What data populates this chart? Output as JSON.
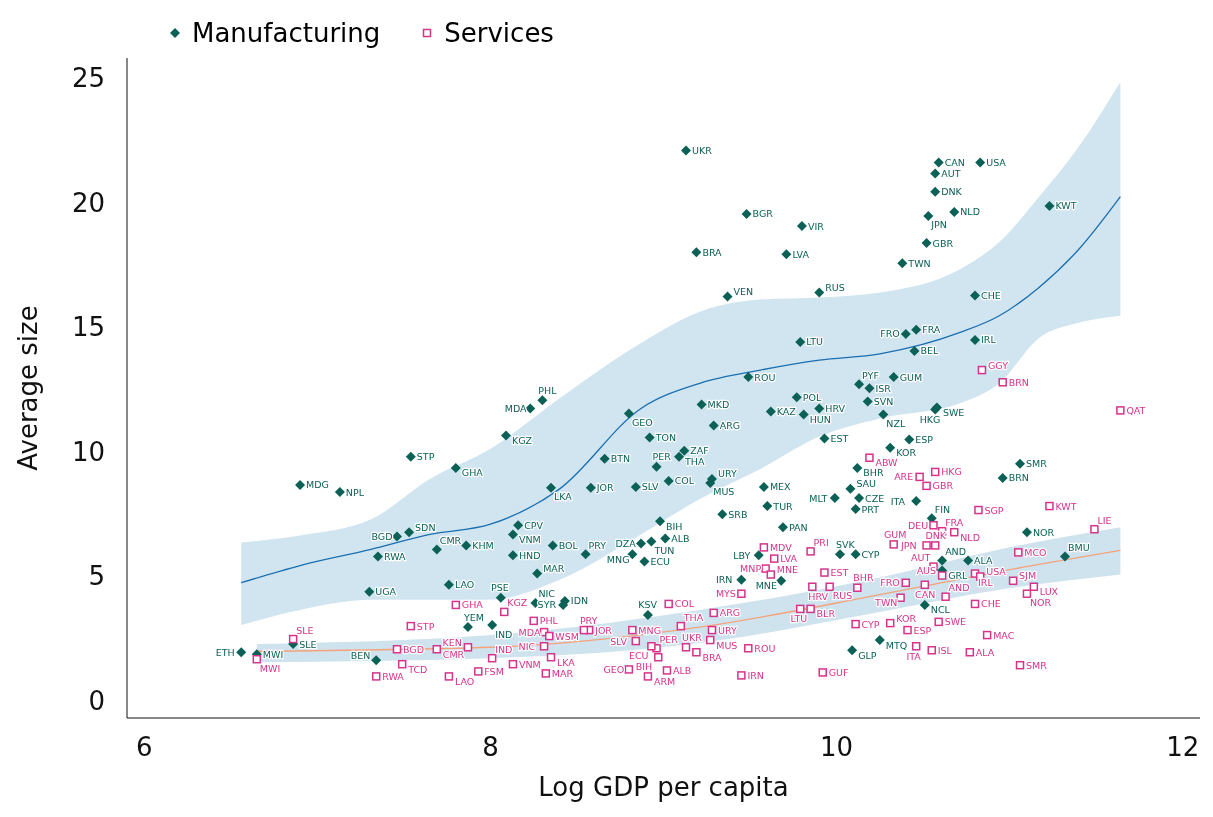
{
  "chart_data": {
    "type": "scatter",
    "xlabel": "Log GDP per capita",
    "ylabel": "Average size",
    "xlim": [
      5.9,
      12.1
    ],
    "ylim": [
      -0.7,
      25.8
    ],
    "xticks": [
      6,
      8,
      10,
      12
    ],
    "yticks": [
      0,
      5,
      10,
      15,
      20,
      25
    ],
    "grid": false,
    "legend": "top left",
    "series": [
      {
        "name": "Manufacturing",
        "marker": "diamond",
        "color": "#0b6156",
        "value_labels": [
          "UKR",
          "CAN",
          "USA",
          "AUT",
          "DNK",
          "JPN",
          "NLD",
          "KWT",
          "BGR",
          "VIR",
          "BRA",
          "LVA",
          "GBR",
          "TWN",
          "VEN",
          "RUS",
          "CHE",
          "FRA",
          "FRO",
          "LTU",
          "IRL",
          "BEL",
          "ROU",
          "GUM",
          "PYF",
          "ISR",
          "POL",
          "SVN",
          "KAZ",
          "HUN",
          "HRV",
          "NZL",
          "SWE",
          "HKG",
          "GEO",
          "MKD",
          "MDA",
          "PHL",
          "KGZ",
          "ARG",
          "TON",
          "EST",
          "ESP",
          "KOR",
          "STP",
          "GHA",
          "ZAF",
          "THA",
          "BTN",
          "PER",
          "SMR",
          "BHR",
          "BRN",
          "MDG",
          "NPL",
          "COL",
          "URY",
          "MUS",
          "MEX",
          "LKA",
          "JOR",
          "SLV",
          "SAU",
          "MLT",
          "CZE",
          "ITA",
          "PRT",
          "TUR",
          "SRB",
          "FIN",
          "BIH",
          "NOR",
          "PAN",
          "SDN",
          "BGD",
          "CPV",
          "VNM",
          "KHM",
          "CMR",
          "BOL",
          "DZA",
          "TUN",
          "ALB",
          "RWA",
          "HND",
          "PRY",
          "MNG",
          "ECU",
          "LBY",
          "SVK",
          "CYP",
          "AND",
          "ALA",
          "BMU",
          "GRL",
          "MAR",
          "IRN",
          "MNE",
          "LAO",
          "UGA",
          "PSE",
          "NIC",
          "IDN",
          "SYR",
          "KSV",
          "YEM",
          "IND",
          "NCL",
          "MTQ",
          "GLP",
          "SLE",
          "ETH",
          "MWI",
          "BEN"
        ],
        "x": [
          9.13,
          10.59,
          10.83,
          10.57,
          10.57,
          10.53,
          10.68,
          11.23,
          9.48,
          9.8,
          9.19,
          9.71,
          10.52,
          10.38,
          9.37,
          9.9,
          10.8,
          10.46,
          10.4,
          9.79,
          10.8,
          10.45,
          9.49,
          10.33,
          10.13,
          10.19,
          9.77,
          10.18,
          9.62,
          9.81,
          9.9,
          10.27,
          10.58,
          10.57,
          8.8,
          9.22,
          8.23,
          8.3,
          8.09,
          9.29,
          8.92,
          9.93,
          10.42,
          10.31,
          7.54,
          7.8,
          9.12,
          9.09,
          8.66,
          8.96,
          11.06,
          10.12,
          10.96,
          6.9,
          7.13,
          9.03,
          9.28,
          9.27,
          9.58,
          8.35,
          8.58,
          8.84,
          10.08,
          9.99,
          10.13,
          10.46,
          10.11,
          9.6,
          9.34,
          10.55,
          8.98,
          11.1,
          9.69,
          7.53,
          7.46,
          8.16,
          8.13,
          7.86,
          7.69,
          8.36,
          8.87,
          8.93,
          9.01,
          7.35,
          8.13,
          8.55,
          8.82,
          8.89,
          9.55,
          10.02,
          10.11,
          10.61,
          10.76,
          11.32,
          10.61,
          8.27,
          9.45,
          9.68,
          7.76,
          7.3,
          8.06,
          8.26,
          8.43,
          8.42,
          8.91,
          7.87,
          8.01,
          10.51,
          10.25,
          10.09,
          6.86,
          6.56,
          6.65,
          7.34
        ],
        "values": [
          22.09,
          21.6,
          21.6,
          21.16,
          20.43,
          19.46,
          19.62,
          19.86,
          19.54,
          19.05,
          18.0,
          17.92,
          18.37,
          17.56,
          16.22,
          16.38,
          16.26,
          14.89,
          14.72,
          14.4,
          14.48,
          14.04,
          12.99,
          12.99,
          12.7,
          12.54,
          12.18,
          12.01,
          11.61,
          11.49,
          11.73,
          11.49,
          11.77,
          11.69,
          11.53,
          11.89,
          11.73,
          12.06,
          10.64,
          11.04,
          10.56,
          10.52,
          10.48,
          10.15,
          9.79,
          9.34,
          10.03,
          9.79,
          9.71,
          9.39,
          9.51,
          9.34,
          8.94,
          8.66,
          8.37,
          8.82,
          8.9,
          8.74,
          8.58,
          8.54,
          8.54,
          8.58,
          8.5,
          8.13,
          8.13,
          8.01,
          7.69,
          7.81,
          7.48,
          7.32,
          7.2,
          6.76,
          6.96,
          6.76,
          6.59,
          7.04,
          6.67,
          6.23,
          6.07,
          6.23,
          6.31,
          6.39,
          6.51,
          5.78,
          5.83,
          5.87,
          5.87,
          5.58,
          5.83,
          5.87,
          5.87,
          5.62,
          5.62,
          5.78,
          5.22,
          5.1,
          4.85,
          4.81,
          4.65,
          4.37,
          4.13,
          3.92,
          4.0,
          3.84,
          3.44,
          2.95,
          3.03,
          3.84,
          2.43,
          2.02,
          2.27,
          1.94,
          1.86,
          1.62
        ]
      },
      {
        "name": "Services",
        "marker": "square",
        "color": "#d6338a",
        "value_labels": [
          "QAT",
          "GGY",
          "BRN",
          "ABW",
          "HKG",
          "ARE",
          "GBR",
          "KWT",
          "SGP",
          "DEU",
          "FRA",
          "NLD",
          "LIE",
          "GUM",
          "JPN",
          "DNK",
          "MCO",
          "MDV",
          "PRI",
          "LVA",
          "MNP",
          "EST",
          "MNE",
          "HRV",
          "RUS",
          "BHR",
          "AUT",
          "IRL",
          "USA",
          "AUS",
          "SJM",
          "LUX",
          "NOR",
          "FRO",
          "CAN",
          "TWN",
          "AND",
          "CHE",
          "MYS",
          "COL",
          "ARG",
          "LTU",
          "BLR",
          "KOR",
          "CYP",
          "SWE",
          "ESP",
          "ITA",
          "ISL",
          "ALA",
          "MAC",
          "SMR",
          "GUF",
          "ROU",
          "IRN",
          "URY",
          "MUS",
          "THA",
          "UKR",
          "BRA",
          "ALB",
          "ARM",
          "GEO",
          "BIH",
          "PER",
          "ECU",
          "SLV",
          "MNG",
          "JOR",
          "PRY",
          "PHL",
          "MDA",
          "WSM",
          "NIC",
          "LKA",
          "MAR",
          "KGZ",
          "GHA",
          "STP",
          "KEN",
          "CMR",
          "BGD",
          "TCD",
          "FSM",
          "LAO",
          "RWA",
          "SLE",
          "MWI",
          "IND",
          "VNM"
        ],
        "x": [
          11.64,
          10.84,
          10.96,
          10.19,
          10.57,
          10.48,
          10.52,
          11.23,
          10.82,
          10.56,
          10.61,
          10.68,
          11.49,
          10.33,
          10.52,
          10.57,
          11.05,
          9.58,
          9.85,
          9.64,
          9.59,
          9.93,
          9.62,
          9.86,
          9.96,
          10.12,
          10.56,
          10.8,
          10.83,
          10.61,
          11.02,
          11.14,
          11.1,
          10.4,
          10.51,
          10.37,
          10.63,
          10.8,
          9.45,
          9.03,
          9.29,
          9.79,
          9.85,
          10.31,
          10.11,
          10.59,
          10.41,
          10.46,
          10.55,
          10.77,
          10.87,
          11.06,
          9.92,
          9.49,
          9.45,
          9.28,
          9.27,
          9.1,
          9.13,
          9.19,
          9.02,
          8.91,
          8.8,
          8.97,
          8.96,
          8.93,
          8.84,
          8.82,
          8.57,
          8.54,
          8.25,
          8.31,
          8.34,
          8.31,
          8.35,
          8.32,
          8.08,
          7.8,
          7.54,
          7.87,
          7.69,
          7.46,
          7.49,
          7.93,
          7.76,
          7.34,
          6.86,
          6.65,
          8.01,
          8.13
        ],
        "values": [
          11.65,
          13.27,
          12.78,
          9.75,
          9.18,
          8.98,
          8.62,
          7.81,
          7.65,
          7.04,
          6.8,
          6.76,
          6.88,
          6.27,
          6.23,
          6.23,
          5.95,
          6.15,
          5.99,
          5.7,
          5.3,
          5.14,
          5.06,
          4.57,
          4.57,
          4.53,
          5.38,
          5.1,
          4.98,
          5.02,
          4.81,
          4.57,
          4.29,
          4.73,
          4.65,
          4.13,
          4.17,
          3.88,
          4.29,
          3.88,
          3.52,
          3.68,
          3.68,
          3.11,
          3.07,
          3.16,
          2.83,
          2.18,
          2.02,
          1.94,
          2.63,
          1.42,
          1.13,
          2.1,
          1.01,
          2.83,
          2.43,
          2.99,
          2.14,
          1.94,
          1.21,
          0.97,
          1.25,
          1.74,
          2.1,
          2.18,
          2.39,
          2.83,
          2.83,
          2.83,
          3.2,
          2.75,
          2.59,
          2.18,
          1.74,
          1.09,
          3.56,
          3.84,
          2.99,
          2.14,
          2.06,
          2.06,
          1.46,
          1.17,
          0.97,
          0.97,
          2.47,
          1.66,
          1.7,
          1.46
        ]
      },
      {
        "type": "line",
        "color": "#1a6fb0",
        "x": [
          6.56,
          6.9,
          7.31,
          7.65,
          8.0,
          8.4,
          8.87,
          9.21,
          9.56,
          9.9,
          10.25,
          10.71,
          10.94,
          11.17,
          11.4,
          11.64
        ],
        "values": [
          4.73,
          5.42,
          6.07,
          6.67,
          7.08,
          8.5,
          11.73,
          12.74,
          13.27,
          13.67,
          13.92,
          14.77,
          15.45,
          16.59,
          18.12,
          20.23
        ],
        "lower": [
          3.03,
          3.64,
          4.05,
          4.05,
          4.05,
          4.85,
          6.67,
          8.09,
          9.3,
          10.6,
          11.33,
          11.93,
          12.74,
          14.56,
          15.17,
          15.45
        ],
        "upper": [
          6.35,
          6.63,
          7.28,
          8.9,
          10.11,
          12.14,
          14.36,
          15.61,
          16.1,
          16.18,
          16.38,
          17.31,
          18.41,
          20.23,
          22.25,
          24.84
        ]
      },
      {
        "type": "line",
        "color": "#f5a27a",
        "x": [
          6.65,
          8.0,
          9.21,
          10.25,
          10.94,
          11.64
        ],
        "values": [
          1.98,
          2.14,
          2.95,
          4.25,
          5.18,
          6.03
        ],
        "lower": [
          1.54,
          1.7,
          2.31,
          3.56,
          4.45,
          5.06
        ],
        "upper": [
          2.27,
          2.63,
          3.64,
          4.94,
          6.07,
          6.96
        ]
      }
    ]
  }
}
